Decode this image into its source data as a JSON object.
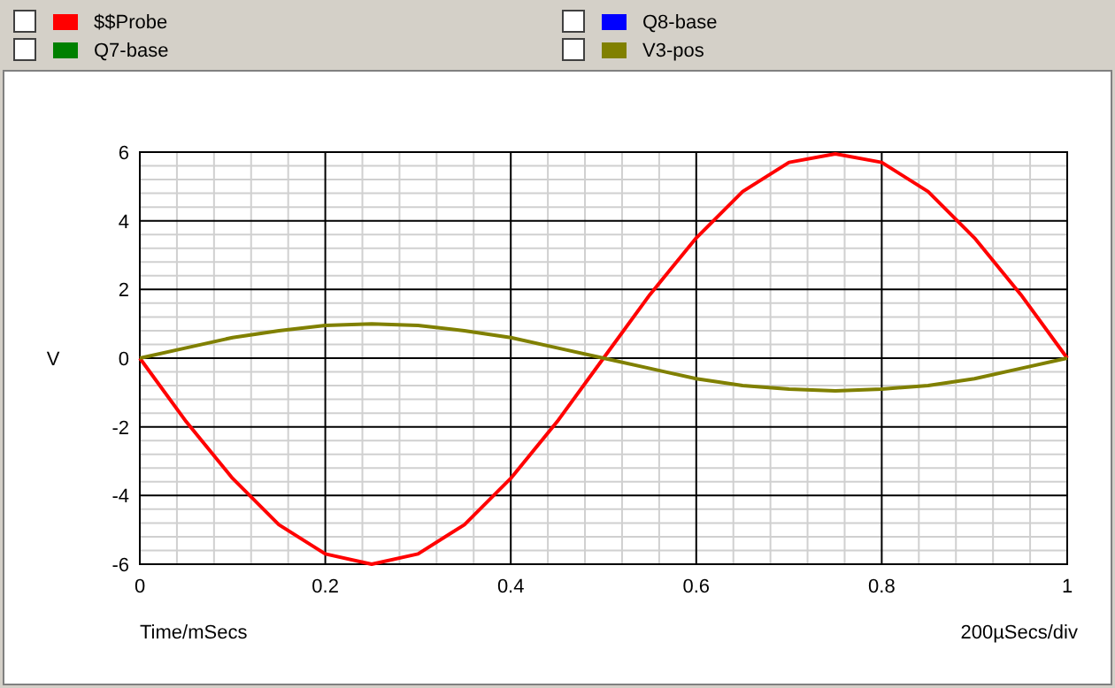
{
  "chart_data": {
    "type": "line",
    "xlabel": "Time/mSecs",
    "ylabel": "V",
    "annotations": [
      "200µSecs/div"
    ],
    "x": [
      0,
      0.05,
      0.1,
      0.15,
      0.2,
      0.25,
      0.3,
      0.35,
      0.4,
      0.45,
      0.5,
      0.55,
      0.6,
      0.65,
      0.7,
      0.75,
      0.8,
      0.85,
      0.9,
      0.95,
      1
    ],
    "series": [
      {
        "name": "$$Probe",
        "color": "#ff0000",
        "values": [
          0,
          -1.85,
          -3.5,
          -4.85,
          -5.7,
          -6,
          -5.7,
          -4.85,
          -3.5,
          -1.85,
          0,
          1.85,
          3.5,
          4.85,
          5.7,
          5.95,
          5.7,
          4.85,
          3.5,
          1.85,
          0
        ]
      },
      {
        "name": "Q8-base",
        "color": "#0000ff",
        "values": [
          null,
          null,
          null,
          null,
          null,
          null,
          null,
          null,
          null,
          null,
          null,
          null,
          null,
          null,
          null,
          null,
          null,
          null,
          null,
          null,
          null
        ]
      },
      {
        "name": "Q7-base",
        "color": "#008000",
        "values": [
          null,
          null,
          null,
          null,
          null,
          null,
          null,
          null,
          null,
          null,
          null,
          null,
          null,
          null,
          null,
          null,
          null,
          null,
          null,
          null,
          null
        ]
      },
      {
        "name": "V3-pos",
        "color": "#808000",
        "values": [
          0,
          0.3,
          0.6,
          0.8,
          0.95,
          1,
          0.95,
          0.8,
          0.6,
          0.3,
          0,
          -0.3,
          -0.6,
          -0.8,
          -0.9,
          -0.95,
          -0.9,
          -0.8,
          -0.6,
          -0.3,
          0
        ]
      }
    ],
    "xlim": [
      0,
      1
    ],
    "ylim": [
      -6,
      6
    ],
    "xticks": [
      0,
      0.2,
      0.4,
      0.6,
      0.8,
      1
    ],
    "yticks": [
      -6,
      -4,
      -2,
      0,
      2,
      4,
      6
    ],
    "grid": true,
    "legend": "top",
    "marker": "none",
    "line_style": "solid"
  }
}
